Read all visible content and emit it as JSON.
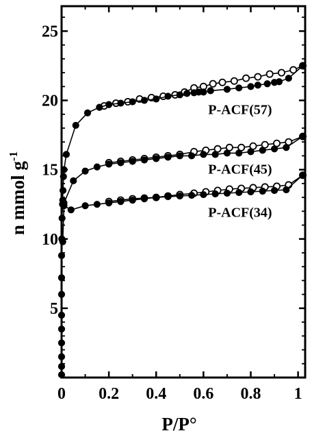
{
  "chart_data": {
    "type": "scatter",
    "title": "",
    "xlabel": "P/P°",
    "ylabel_main": "n mmol g",
    "ylabel_sup": "-1",
    "xlim": [
      0,
      1.03
    ],
    "ylim": [
      0,
      26.8
    ],
    "x_ticks": [
      0,
      0.2,
      0.4,
      0.6,
      0.8,
      1
    ],
    "x_tick_labels": [
      "0",
      "0.2",
      "0.4",
      "0.6",
      "0.8",
      "1"
    ],
    "y_ticks": [
      5,
      10,
      15,
      20,
      25
    ],
    "y_tick_labels": [
      "5",
      "10",
      "15",
      "20",
      "25"
    ],
    "grid": false,
    "legend": "labels next to curves",
    "series": [
      {
        "name": "P-ACF(57)",
        "adsorption": {
          "x": [
            0,
            0,
            0,
            0,
            0,
            0,
            0,
            0,
            0,
            0.001,
            0.002,
            0.004,
            0.006,
            0.008,
            0.01,
            0.02,
            0.06,
            0.11,
            0.16,
            0.2,
            0.25,
            0.3,
            0.35,
            0.4,
            0.45,
            0.5,
            0.53,
            0.56,
            0.58,
            0.6,
            0.63,
            0.7,
            0.75,
            0.8,
            0.83,
            0.87,
            0.9,
            0.92,
            0.96,
            1.02
          ],
          "y": [
            0.2,
            0.8,
            1.5,
            2.5,
            3.5,
            4.5,
            6.0,
            7.2,
            8.8,
            10.0,
            11.5,
            12.5,
            13.5,
            14.5,
            15.0,
            16.1,
            18.2,
            19.1,
            19.5,
            19.7,
            19.8,
            19.9,
            20.0,
            20.1,
            20.3,
            20.4,
            20.5,
            20.55,
            20.6,
            20.6,
            20.7,
            20.8,
            20.9,
            21.0,
            21.1,
            21.2,
            21.3,
            21.35,
            21.6,
            22.5
          ]
        },
        "desorption": {
          "x": [
            1.02,
            0.98,
            0.93,
            0.88,
            0.83,
            0.78,
            0.73,
            0.68,
            0.64,
            0.6,
            0.56,
            0.52,
            0.48,
            0.43,
            0.38,
            0.33,
            0.28,
            0.23,
            0.18
          ],
          "y": [
            22.5,
            22.2,
            22.0,
            21.9,
            21.7,
            21.6,
            21.4,
            21.3,
            21.2,
            21.0,
            20.9,
            20.6,
            20.4,
            20.3,
            20.2,
            20.1,
            19.9,
            19.8,
            19.6
          ]
        }
      },
      {
        "name": "P-ACF(45)",
        "adsorption": {
          "x": [
            0.005,
            0.01,
            0.05,
            0.1,
            0.15,
            0.2,
            0.25,
            0.3,
            0.35,
            0.4,
            0.45,
            0.5,
            0.55,
            0.6,
            0.65,
            0.7,
            0.75,
            0.8,
            0.85,
            0.9,
            0.95,
            1.02
          ],
          "y": [
            12.8,
            12.6,
            14.2,
            14.9,
            15.2,
            15.4,
            15.5,
            15.6,
            15.7,
            15.8,
            15.9,
            16.0,
            16.0,
            16.1,
            16.1,
            16.2,
            16.2,
            16.3,
            16.4,
            16.5,
            16.6,
            17.4
          ]
        },
        "desorption": {
          "x": [
            1.02,
            0.96,
            0.91,
            0.86,
            0.81,
            0.76,
            0.71,
            0.66,
            0.61,
            0.56,
            0.5,
            0.45,
            0.4,
            0.35,
            0.3,
            0.25,
            0.2
          ],
          "y": [
            17.4,
            17.0,
            16.9,
            16.8,
            16.7,
            16.6,
            16.6,
            16.5,
            16.4,
            16.3,
            16.1,
            16.0,
            15.9,
            15.8,
            15.7,
            15.6,
            15.5
          ]
        }
      },
      {
        "name": "P-ACF(34)",
        "adsorption": {
          "x": [
            0.005,
            0.01,
            0.04,
            0.1,
            0.15,
            0.2,
            0.25,
            0.3,
            0.35,
            0.4,
            0.45,
            0.5,
            0.55,
            0.6,
            0.65,
            0.7,
            0.75,
            0.8,
            0.85,
            0.9,
            0.95,
            1.02
          ],
          "y": [
            9.8,
            12.4,
            12.1,
            12.4,
            12.5,
            12.6,
            12.7,
            12.8,
            12.9,
            13.0,
            13.05,
            13.1,
            13.15,
            13.2,
            13.25,
            13.3,
            13.35,
            13.4,
            13.45,
            13.5,
            13.55,
            14.6
          ]
        },
        "desorption": {
          "x": [
            1.02,
            0.96,
            0.91,
            0.86,
            0.81,
            0.76,
            0.71,
            0.66,
            0.61,
            0.56,
            0.5,
            0.45,
            0.4,
            0.35,
            0.3,
            0.25,
            0.2
          ],
          "y": [
            14.6,
            13.9,
            13.8,
            13.75,
            13.7,
            13.65,
            13.6,
            13.5,
            13.4,
            13.3,
            13.2,
            13.1,
            13.0,
            12.95,
            12.9,
            12.8,
            12.7
          ]
        }
      }
    ]
  }
}
